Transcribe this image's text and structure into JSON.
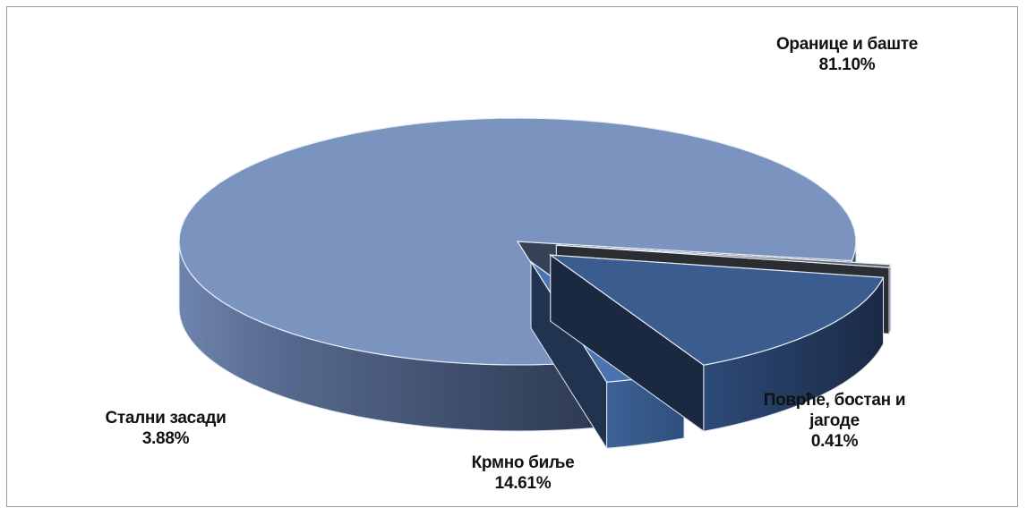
{
  "chart_data": {
    "type": "pie",
    "style": "3d-exploded",
    "title": "",
    "slices": [
      {
        "name": "Оранице и баште",
        "name_line2": "",
        "label": "81.10%",
        "value": 81.1,
        "color": "#7b93bf"
      },
      {
        "name": "Поврће, бостан и",
        "name_line2": "јагоде",
        "label": "0.41%",
        "value": 0.41,
        "color": "#5d6470"
      },
      {
        "name": "Крмно биље",
        "name_line2": "",
        "label": "14.61%",
        "value": 14.61,
        "color": "#3b5c8e"
      },
      {
        "name": "Стални засади",
        "name_line2": "",
        "label": "3.88%",
        "value": 3.88,
        "color": "#4a74b0"
      }
    ]
  }
}
